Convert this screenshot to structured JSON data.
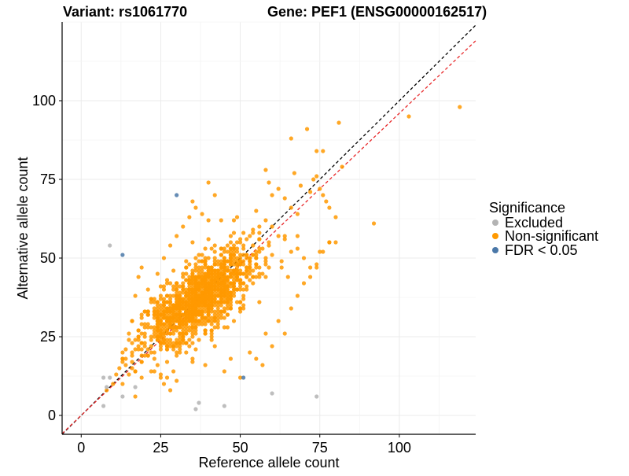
{
  "chart_data": {
    "type": "scatter",
    "title_left": "Variant: rs1061770",
    "title_right": "Gene: PEF1 (ENSG00000162517)",
    "xlabel": "Reference allele count",
    "ylabel": "Alternative allele count",
    "xlim": [
      -6,
      124
    ],
    "ylim": [
      -6,
      125
    ],
    "xticks": [
      0,
      25,
      50,
      75,
      100
    ],
    "yticks": [
      0,
      25,
      50,
      75,
      100
    ],
    "grid": true,
    "legend": {
      "title": "Significance",
      "position": "right",
      "items": [
        {
          "label": "Excluded",
          "color": "#b3b3b3"
        },
        {
          "label": "Non-significant",
          "color": "#ff9900"
        },
        {
          "label": "FDR < 0.05",
          "color": "#4a78a8"
        }
      ]
    },
    "reference_lines": [
      {
        "type": "identity",
        "color": "#000000",
        "dash": true,
        "slope": 1,
        "intercept": 0
      },
      {
        "type": "fit",
        "color": "#e8282a",
        "dash": true,
        "slope": 0.96,
        "intercept": 0
      }
    ],
    "series": [
      {
        "name": "Excluded",
        "color": "#b3b3b3",
        "points": [
          [
            9,
            54
          ],
          [
            7,
            3
          ],
          [
            8,
            9
          ],
          [
            7,
            12
          ],
          [
            9,
            12
          ],
          [
            13,
            6
          ],
          [
            17,
            9
          ],
          [
            36,
            2
          ],
          [
            37,
            4
          ],
          [
            45,
            3
          ],
          [
            60,
            7
          ],
          [
            74,
            6
          ]
        ]
      },
      {
        "name": "FDR < 0.05",
        "color": "#4a78a8",
        "points": [
          [
            13,
            51
          ],
          [
            30,
            70
          ],
          [
            51,
            12
          ]
        ]
      },
      {
        "name": "Non-significant",
        "color": "#ff9900",
        "cluster": {
          "center": [
            37,
            37
          ],
          "sd": [
            9,
            8
          ],
          "n": 1400,
          "seed": 42
        },
        "points": [
          [
            10,
            10
          ],
          [
            11,
            13
          ],
          [
            12,
            15
          ],
          [
            13,
            10
          ],
          [
            14,
            16
          ],
          [
            15,
            13
          ],
          [
            14,
            18
          ],
          [
            16,
            19
          ],
          [
            17,
            14
          ],
          [
            18,
            21
          ],
          [
            19,
            17
          ],
          [
            20,
            23
          ],
          [
            21,
            19
          ],
          [
            22,
            25
          ],
          [
            23,
            20
          ],
          [
            24,
            16
          ],
          [
            19,
            12
          ],
          [
            22,
            14
          ],
          [
            25,
            13
          ],
          [
            27,
            12
          ],
          [
            29,
            14
          ],
          [
            30,
            11
          ],
          [
            16,
            30
          ],
          [
            17,
            38
          ],
          [
            18,
            44
          ],
          [
            19,
            47
          ],
          [
            20,
            33
          ],
          [
            21,
            40
          ],
          [
            22,
            36
          ],
          [
            24,
            45
          ],
          [
            26,
            50
          ],
          [
            28,
            54
          ],
          [
            30,
            57
          ],
          [
            32,
            60
          ],
          [
            34,
            63
          ],
          [
            36,
            66
          ],
          [
            38,
            64
          ],
          [
            40,
            62
          ],
          [
            44,
            62
          ],
          [
            48,
            58
          ],
          [
            52,
            56
          ],
          [
            56,
            58
          ],
          [
            58,
            62
          ],
          [
            60,
            60
          ],
          [
            62,
            57
          ],
          [
            64,
            56
          ],
          [
            66,
            52
          ],
          [
            68,
            53
          ],
          [
            70,
            50
          ],
          [
            72,
            47
          ],
          [
            74,
            47
          ],
          [
            76,
            52
          ],
          [
            78,
            55
          ],
          [
            75,
            52
          ],
          [
            57,
            16
          ],
          [
            55,
            18
          ],
          [
            53,
            20
          ],
          [
            60,
            22
          ],
          [
            58,
            26
          ],
          [
            62,
            30
          ],
          [
            64,
            26
          ],
          [
            66,
            34
          ],
          [
            68,
            38
          ],
          [
            70,
            42
          ],
          [
            72,
            44
          ],
          [
            74,
            48
          ],
          [
            65,
            44
          ],
          [
            66,
            88
          ],
          [
            71,
            91
          ],
          [
            74,
            84
          ],
          [
            76,
            84
          ],
          [
            81,
            93
          ],
          [
            82,
            79
          ],
          [
            67,
            77
          ],
          [
            69,
            73
          ],
          [
            72,
            71
          ],
          [
            73,
            75
          ],
          [
            74,
            76
          ],
          [
            75,
            72
          ],
          [
            76,
            70
          ],
          [
            77,
            68
          ],
          [
            78,
            66
          ],
          [
            80,
            63
          ],
          [
            78,
            55
          ],
          [
            80,
            55
          ],
          [
            58,
            78
          ],
          [
            59,
            74
          ],
          [
            62,
            72
          ],
          [
            64,
            69
          ],
          [
            66,
            66
          ],
          [
            68,
            64
          ],
          [
            60,
            70
          ],
          [
            92,
            61
          ],
          [
            103,
            95
          ],
          [
            119,
            98
          ],
          [
            50,
            12
          ],
          [
            45,
            14
          ],
          [
            35,
            18
          ],
          [
            33,
            20
          ],
          [
            39,
            16
          ],
          [
            47,
            18
          ],
          [
            42,
            22
          ],
          [
            28,
            8
          ],
          [
            26,
            10
          ],
          [
            40,
            74
          ],
          [
            42,
            70
          ],
          [
            35,
            68
          ],
          [
            55,
            65
          ],
          [
            48,
            62
          ],
          [
            56,
            60
          ]
        ]
      }
    ]
  }
}
